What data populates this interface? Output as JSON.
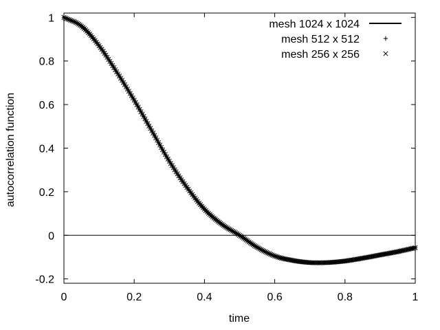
{
  "chart_data": {
    "type": "line",
    "xlabel": "time",
    "ylabel": "autocorrelation function",
    "xlim": [
      0,
      1
    ],
    "ylim": [
      -0.22,
      1.02
    ],
    "x_ticks": [
      0,
      0.2,
      0.4,
      0.6,
      0.8,
      1
    ],
    "x_tick_labels": [
      "0",
      "0.2",
      "0.4",
      "0.6",
      "0.8",
      "1"
    ],
    "y_ticks": [
      -0.2,
      0,
      0.2,
      0.4,
      0.6,
      0.8,
      1
    ],
    "y_tick_labels": [
      "-0.2",
      "0",
      "0.2",
      "0.4",
      "0.6",
      "0.8",
      "1"
    ],
    "reference_line_y": 0,
    "grid": false,
    "legend_position": "top-right",
    "series": [
      {
        "name": "mesh 1024 x 1024",
        "style": "line",
        "color": "#000000",
        "x": [
          0,
          0.05,
          0.1,
          0.15,
          0.2,
          0.25,
          0.3,
          0.35,
          0.4,
          0.45,
          0.5,
          0.55,
          0.6,
          0.65,
          0.7,
          0.75,
          0.8,
          0.85,
          0.9,
          0.95,
          1.0
        ],
        "y": [
          1.0,
          0.96,
          0.87,
          0.75,
          0.62,
          0.48,
          0.34,
          0.22,
          0.12,
          0.05,
          0.0,
          -0.055,
          -0.095,
          -0.115,
          -0.125,
          -0.125,
          -0.118,
          -0.105,
          -0.09,
          -0.075,
          -0.057
        ]
      },
      {
        "name": "mesh 512 x 512",
        "style": "plus",
        "color": "#000000",
        "x": [
          0,
          0.05,
          0.1,
          0.15,
          0.2,
          0.25,
          0.3,
          0.35,
          0.4,
          0.45,
          0.5,
          0.55,
          0.6,
          0.65,
          0.7,
          0.75,
          0.8,
          0.85,
          0.9,
          0.95,
          1.0
        ],
        "y": [
          1.0,
          0.96,
          0.87,
          0.75,
          0.62,
          0.48,
          0.34,
          0.22,
          0.12,
          0.05,
          0.0,
          -0.055,
          -0.095,
          -0.115,
          -0.125,
          -0.125,
          -0.118,
          -0.105,
          -0.09,
          -0.075,
          -0.057
        ]
      },
      {
        "name": "mesh 256 x 256",
        "style": "cross",
        "color": "#000000",
        "x": [
          0,
          0.05,
          0.1,
          0.15,
          0.2,
          0.25,
          0.3,
          0.35,
          0.4,
          0.45,
          0.5,
          0.55,
          0.6,
          0.65,
          0.7,
          0.75,
          0.8,
          0.85,
          0.9,
          0.95,
          1.0
        ],
        "y": [
          1.0,
          0.96,
          0.87,
          0.75,
          0.62,
          0.48,
          0.34,
          0.22,
          0.12,
          0.05,
          0.0,
          -0.055,
          -0.095,
          -0.115,
          -0.125,
          -0.125,
          -0.118,
          -0.105,
          -0.09,
          -0.075,
          -0.057
        ]
      }
    ]
  }
}
